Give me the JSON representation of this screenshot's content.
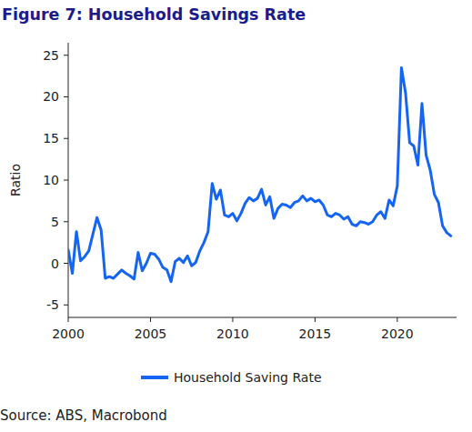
{
  "chart_data": {
    "type": "line",
    "title": "Figure 7: Household Savings Rate",
    "y_label": "Ratio",
    "source": "Source: ABS, Macrobond",
    "x": [
      2000.0,
      2000.25,
      2000.5,
      2000.75,
      2001.0,
      2001.25,
      2001.5,
      2001.75,
      2002.0,
      2002.25,
      2002.5,
      2002.75,
      2003.0,
      2003.25,
      2003.5,
      2003.75,
      2004.0,
      2004.25,
      2004.5,
      2004.75,
      2005.0,
      2005.25,
      2005.5,
      2005.75,
      2006.0,
      2006.25,
      2006.5,
      2006.75,
      2007.0,
      2007.25,
      2007.5,
      2007.75,
      2008.0,
      2008.25,
      2008.5,
      2008.75,
      2009.0,
      2009.25,
      2009.5,
      2009.75,
      2010.0,
      2010.25,
      2010.5,
      2010.75,
      2011.0,
      2011.25,
      2011.5,
      2011.75,
      2012.0,
      2012.25,
      2012.5,
      2012.75,
      2013.0,
      2013.25,
      2013.5,
      2013.75,
      2014.0,
      2014.25,
      2014.5,
      2014.75,
      2015.0,
      2015.25,
      2015.5,
      2015.75,
      2016.0,
      2016.25,
      2016.5,
      2016.75,
      2017.0,
      2017.25,
      2017.5,
      2017.75,
      2018.0,
      2018.25,
      2018.5,
      2018.75,
      2019.0,
      2019.25,
      2019.5,
      2019.75,
      2020.0,
      2020.25,
      2020.5,
      2020.75,
      2021.0,
      2021.25,
      2021.5,
      2021.75,
      2022.0,
      2022.25,
      2022.5,
      2022.75,
      2023.0,
      2023.25
    ],
    "series": [
      {
        "name": "Household Saving Rate",
        "color": "#1565f5",
        "values": [
          1.6,
          -1.2,
          3.8,
          0.3,
          0.8,
          1.5,
          3.5,
          5.5,
          4.0,
          -1.8,
          -1.6,
          -1.8,
          -1.3,
          -0.8,
          -1.2,
          -1.5,
          -1.9,
          1.3,
          -0.9,
          0.0,
          1.2,
          1.1,
          0.5,
          -0.5,
          -0.8,
          -2.2,
          0.2,
          0.6,
          0.1,
          0.9,
          -0.3,
          0.1,
          1.5,
          2.5,
          3.8,
          9.6,
          7.7,
          8.8,
          5.8,
          5.6,
          6.0,
          5.1,
          6.0,
          7.2,
          7.9,
          7.5,
          7.8,
          8.9,
          7.0,
          8.0,
          5.4,
          6.6,
          7.1,
          7.0,
          6.7,
          7.3,
          7.5,
          8.1,
          7.5,
          7.8,
          7.4,
          7.6,
          7.0,
          5.8,
          5.6,
          6.0,
          5.8,
          5.3,
          5.6,
          4.7,
          4.5,
          5.0,
          4.9,
          4.7,
          5.0,
          5.8,
          6.2,
          5.4,
          7.6,
          6.9,
          9.3,
          23.5,
          20.5,
          14.5,
          14.1,
          11.8,
          19.2,
          13.0,
          11.2,
          8.3,
          7.3,
          4.5,
          3.7,
          3.3
        ]
      }
    ],
    "xlim": [
      2000,
      2023.6
    ],
    "xticks": [
      2000,
      2005,
      2010,
      2015,
      2020
    ],
    "ylim": [
      -6.5,
      26.5
    ],
    "yticks": [
      -5,
      0,
      5,
      10,
      15,
      20,
      25
    ],
    "grid": false,
    "legend": "bottom"
  }
}
